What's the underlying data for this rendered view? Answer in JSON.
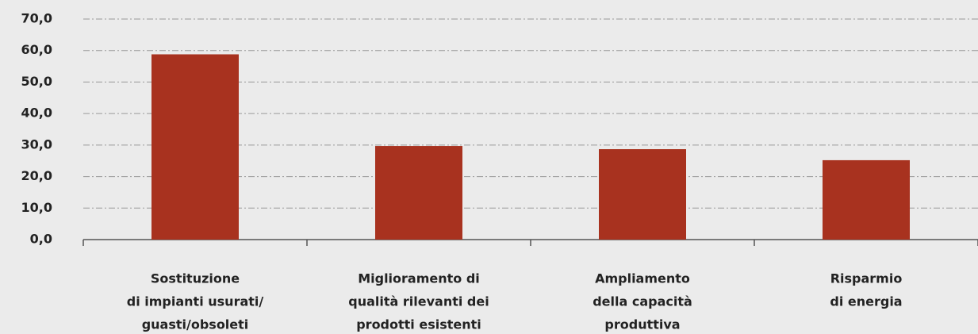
{
  "chart_data": {
    "type": "bar",
    "categories": [
      [
        "Sostituzione",
        "di impianti usurati/",
        "guasti/obsoleti"
      ],
      [
        "Miglioramento di",
        "qualità rilevanti dei",
        "prodotti esistenti"
      ],
      [
        "Ampliamento",
        "della capacità",
        "produttiva"
      ],
      [
        "Risparmio",
        "di energia"
      ]
    ],
    "values": [
      58.8,
      29.7,
      28.7,
      25.2
    ],
    "color": "#a8321f",
    "ylim": [
      0,
      70
    ],
    "yticks": [
      {
        "value": 0,
        "label": "0,0"
      },
      {
        "value": 10,
        "label": "10,0"
      },
      {
        "value": 20,
        "label": "20,0"
      },
      {
        "value": 30,
        "label": "30,0"
      },
      {
        "value": 40,
        "label": "40,0"
      },
      {
        "value": 50,
        "label": "50,0"
      },
      {
        "value": 60,
        "label": "60,0"
      },
      {
        "value": 70,
        "label": "70,0"
      }
    ],
    "grid": true
  }
}
